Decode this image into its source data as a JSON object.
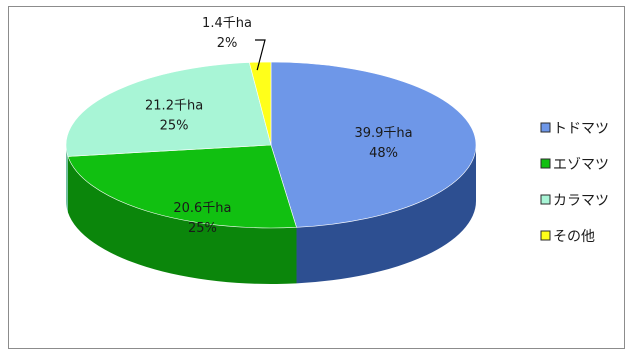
{
  "chart_data": {
    "type": "pie",
    "style": "3d",
    "legend_position": "right",
    "slices": [
      {
        "name": "トドマツ",
        "value_text": "39.9千ha",
        "percent_text": "48%",
        "value": 39.9,
        "percent": 48,
        "color": "#6e97e8",
        "side_color": "#2d4f91"
      },
      {
        "name": "エゾマツ",
        "value_text": "20.6千ha",
        "percent_text": "25%",
        "value": 20.6,
        "percent": 25,
        "color": "#11c011",
        "side_color": "#0b860b"
      },
      {
        "name": "カラマツ",
        "value_text": "21.2千ha",
        "percent_text": "25%",
        "value": 21.2,
        "percent": 25,
        "color": "#a8f5d6",
        "side_color": "#6fbf9f"
      },
      {
        "name": "その他",
        "value_text": "1.4千ha",
        "percent_text": "2%",
        "value": 1.4,
        "percent": 2,
        "color": "#ffff1a",
        "side_color": "#b8b800"
      }
    ]
  }
}
